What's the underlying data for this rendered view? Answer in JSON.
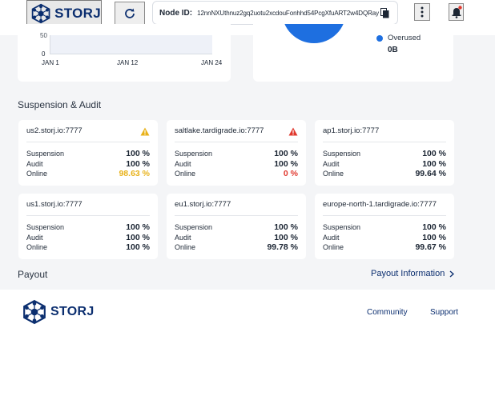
{
  "header": {
    "logo_text": "STORJ",
    "node_id_label": "Node ID:",
    "node_id_value": "12nnNXUthnuz2gq2uotu2xcdouFonhhd54PcgXfuART2w4DQRay"
  },
  "bandwidth_chart": {
    "y_tick": "0",
    "y_tick_partial": "50",
    "x_ticks": [
      "JAN 1",
      "JAN 12",
      "JAN 24"
    ]
  },
  "disk_card": {
    "legend_label": "Overused",
    "legend_value": "0B",
    "legend_color": "#1e6fe0"
  },
  "suspension_audit": {
    "title": "Suspension & Audit",
    "satellites": [
      {
        "name": "us2.storj.io:7777",
        "status_icon": "warning-yellow",
        "suspension": "100 %",
        "audit": "100 %",
        "online": "98.63 %",
        "online_state": "warn"
      },
      {
        "name": "saltlake.tardigrade.io:7777",
        "status_icon": "warning-red",
        "suspension": "100 %",
        "audit": "100 %",
        "online": "0 %",
        "online_state": "bad"
      },
      {
        "name": "ap1.storj.io:7777",
        "status_icon": "",
        "suspension": "100 %",
        "audit": "100 %",
        "online": "99.64 %",
        "online_state": "ok"
      },
      {
        "name": "us1.storj.io:7777",
        "status_icon": "",
        "suspension": "100 %",
        "audit": "100 %",
        "online": "100 %",
        "online_state": "ok"
      },
      {
        "name": "eu1.storj.io:7777",
        "status_icon": "",
        "suspension": "100 %",
        "audit": "100 %",
        "online": "99.78 %",
        "online_state": "ok"
      },
      {
        "name": "europe-north-1.tardigrade.io:7777",
        "status_icon": "",
        "suspension": "100 %",
        "audit": "100 %",
        "online": "99.67 %",
        "online_state": "ok"
      }
    ],
    "labels": {
      "suspension": "Suspension",
      "audit": "Audit",
      "online": "Online"
    }
  },
  "payout": {
    "title": "Payout",
    "link_label": "Payout Information"
  },
  "footer": {
    "logo_text": "STORJ",
    "links": [
      "Community",
      "Support"
    ]
  },
  "colors": {
    "brand": "#0b2e6f",
    "accent": "#1e6fe0",
    "warn": "#e8b21a",
    "bad": "#e0382e"
  }
}
